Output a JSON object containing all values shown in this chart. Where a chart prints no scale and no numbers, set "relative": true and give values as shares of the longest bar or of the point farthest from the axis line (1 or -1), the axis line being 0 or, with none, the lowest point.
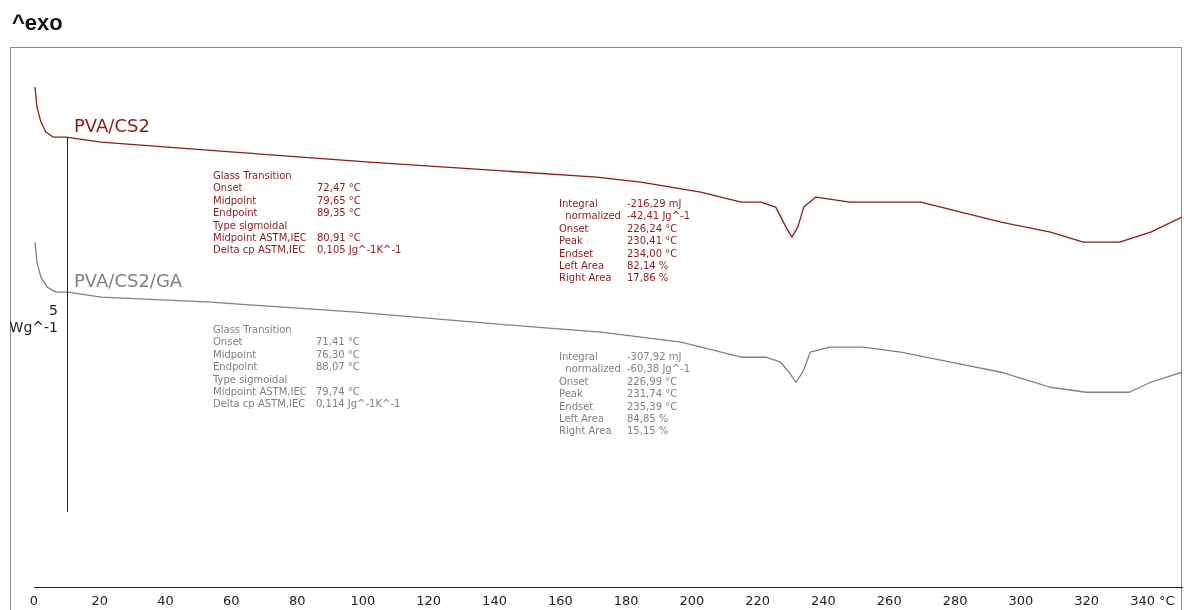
{
  "chart_data": {
    "type": "line",
    "title": "^exo",
    "ylabel": "5 Wg^-1",
    "relative": true,
    "xlim": [
      0,
      349
    ],
    "xticks": [
      0,
      20,
      40,
      60,
      80,
      100,
      120,
      140,
      160,
      180,
      200,
      220,
      240,
      260,
      280,
      300,
      320,
      {
        "value": 340,
        "label": "340 °C"
      }
    ],
    "series": [
      {
        "name": "PVA/CS2",
        "color": "#8b1a1a",
        "x": [
          0.3,
          0.9,
          2.1,
          3.6,
          5.8,
          9.7,
          20.4,
          60.8,
          102,
          171,
          184.5,
          202.7,
          215,
          221,
          225.5,
          228.6,
          230.4,
          232.2,
          234,
          237.7,
          248,
          257.4,
          269.6,
          281.8,
          294,
          309,
          319,
          330,
          339.5,
          349
        ],
        "values": [
          1.0,
          0.96,
          0.93,
          0.91,
          0.9,
          0.9,
          0.89,
          0.87,
          0.85,
          0.82,
          0.81,
          0.79,
          0.77,
          0.77,
          0.76,
          0.72,
          0.7,
          0.72,
          0.76,
          0.78,
          0.77,
          0.77,
          0.77,
          0.75,
          0.73,
          0.71,
          0.69,
          0.69,
          0.71,
          0.74
        ]
      },
      {
        "name": "PVA/CS2/GA",
        "color": "#808080",
        "x": [
          0.3,
          0.9,
          2.1,
          4,
          6.7,
          10.3,
          20.4,
          53.8,
          97.9,
          152.6,
          172.3,
          196.7,
          215,
          222.5,
          227,
          229.5,
          231.6,
          233.7,
          236,
          242,
          252,
          263.5,
          278.7,
          294,
          309,
          319.8,
          326,
          333,
          339.5,
          349
        ],
        "values": [
          0.69,
          0.65,
          0.62,
          0.6,
          0.59,
          0.59,
          0.58,
          0.57,
          0.55,
          0.52,
          0.51,
          0.49,
          0.46,
          0.46,
          0.45,
          0.43,
          0.41,
          0.43,
          0.47,
          0.48,
          0.48,
          0.47,
          0.45,
          0.43,
          0.4,
          0.39,
          0.39,
          0.39,
          0.41,
          0.43
        ]
      }
    ],
    "annotations": [
      "Glass Transition\nOnset\t72,47 °C\nMidpoint\t79,65 °C\nEndpoint\t89,35 °C\nType sigmoidal\nMidpoint ASTM,IEC\t80,91 °C\nDelta cp ASTM,IEC\t0,105 Jg^-1K^-1",
      "Integral\t-216,29 mJ\n  normalized\t-42,41 Jg^-1\nOnset\t226,24 °C\nPeak\t230,41 °C\nEndset\t234,00 °C\nLeft Area\t82,14 %\nRight Area\t17,86 %",
      "Glass Transition\nOnset\t71,41 °C\nMidpoint\t76,30 °C\nEndpoint\t88,07 °C\nType sigmoidal\nMidpoint ASTM,IEC\t79,74 °C\nDelta cp ASTM,IEC\t0,114 Jg^-1K^-1",
      "Integral\t-307,92 mJ\n  normalized\t-60,38 Jg^-1\nOnset\t226,99 °C\nPeak\t231,74 °C\nEndset\t235,39 °C\nLeft Area\t84,85 %\nRight Area\t15,15 %"
    ]
  }
}
